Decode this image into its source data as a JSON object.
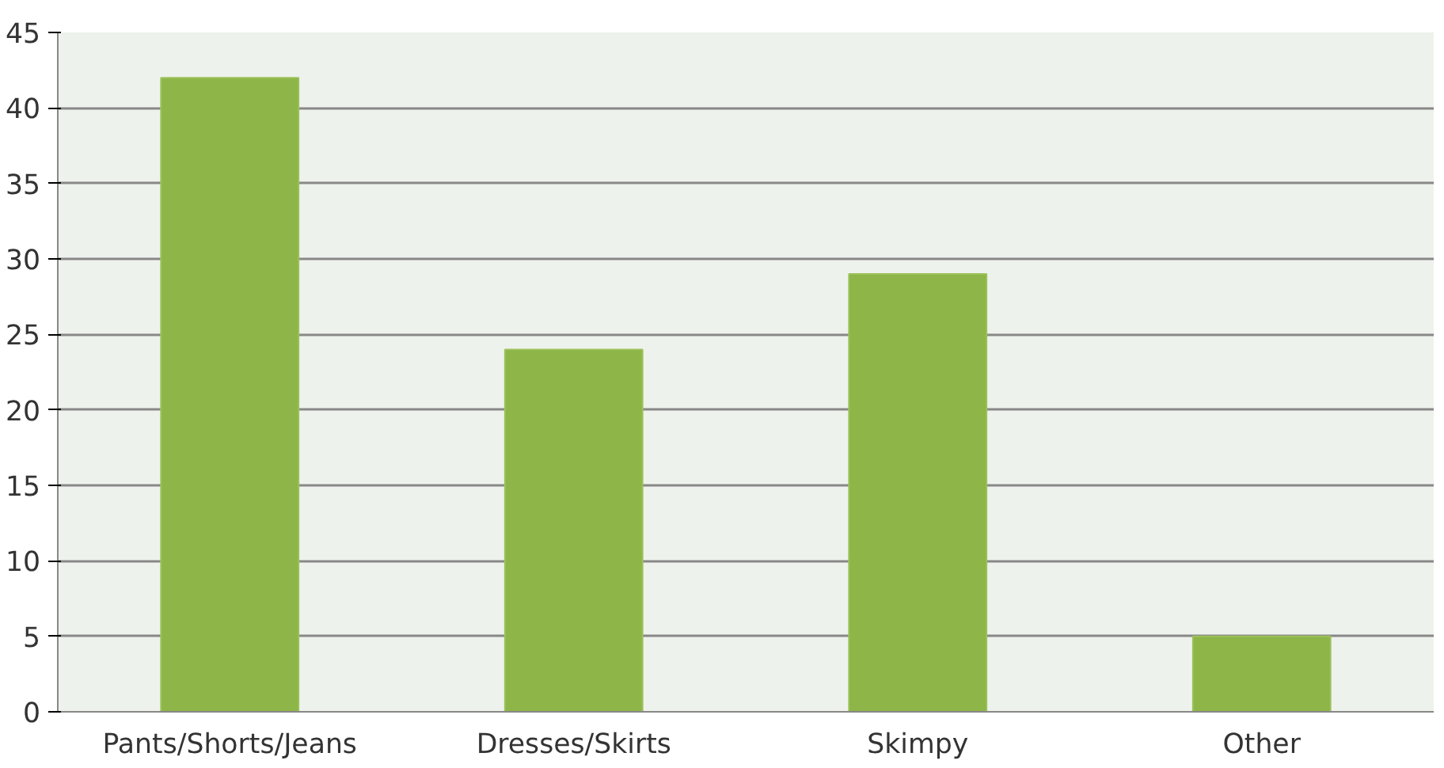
{
  "chart_data": {
    "type": "bar",
    "categories": [
      "Pants/Shorts/Jeans",
      "Dresses/Skirts",
      "Skimpy",
      "Other"
    ],
    "values": [
      42,
      24,
      29,
      5
    ],
    "color": "#8db548",
    "ylim": [
      0,
      45
    ],
    "yticks": [
      0,
      5,
      10,
      15,
      20,
      25,
      30,
      35,
      40,
      45
    ],
    "grid": "y"
  }
}
